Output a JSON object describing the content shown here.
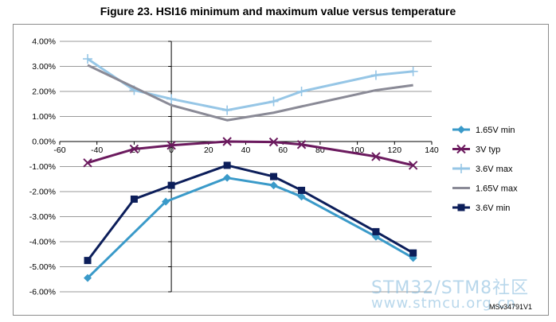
{
  "chart_data": {
    "type": "line",
    "title": "Figure 23. HSI16 minimum and maximum value versus temperature",
    "xlabel": "",
    "ylabel": "",
    "xlim": [
      -60,
      140
    ],
    "ylim": [
      -6.0,
      4.0
    ],
    "x_ticks": [
      -60,
      -40,
      -20,
      0,
      20,
      40,
      60,
      80,
      100,
      120,
      140
    ],
    "y_ticks": [
      4.0,
      3.0,
      2.0,
      1.0,
      0.0,
      -1.0,
      -2.0,
      -3.0,
      -4.0,
      -5.0,
      -6.0
    ],
    "y_tick_labels": [
      "4.00%",
      "3.00%",
      "2.00%",
      "1.00%",
      "0.00%",
      "-1.00%",
      "-2.00%",
      "-3.00%",
      "-4.00%",
      "-5.00%",
      "-6.00%"
    ],
    "x_tick_labels": [
      "-60",
      "-40",
      "-20",
      "0",
      "20",
      "40",
      "60",
      "80",
      "100",
      "120",
      "140"
    ],
    "grid": "horizontal",
    "legend_position": "right",
    "series": [
      {
        "name": "1.65V min",
        "color": "#3a9ac9",
        "marker": "diamond",
        "x": [
          -45,
          -3,
          30,
          55,
          70,
          110,
          130
        ],
        "y": [
          -5.45,
          -2.4,
          -1.45,
          -1.75,
          -2.2,
          -3.8,
          -4.65
        ]
      },
      {
        "name": "3V typ",
        "color": "#6b1a5e",
        "marker": "x",
        "x": [
          -45,
          -20,
          0,
          30,
          55,
          70,
          110,
          130
        ],
        "y": [
          -0.85,
          -0.3,
          -0.15,
          0.0,
          -0.02,
          -0.12,
          -0.6,
          -0.95
        ]
      },
      {
        "name": "3.6V max",
        "color": "#96c6e6",
        "marker": "plus",
        "x": [
          -45,
          -20,
          0,
          30,
          55,
          70,
          110,
          130
        ],
        "y": [
          3.3,
          2.05,
          1.7,
          1.25,
          1.6,
          2.0,
          2.65,
          2.8
        ]
      },
      {
        "name": "1.65V max",
        "color": "#8a8a96",
        "marker": "none",
        "x": [
          -45,
          0,
          30,
          55,
          70,
          110,
          130
        ],
        "y": [
          3.05,
          1.45,
          0.85,
          1.15,
          1.4,
          2.05,
          2.25
        ]
      },
      {
        "name": "3.6V min",
        "color": "#0c1e5a",
        "marker": "square",
        "x": [
          -45,
          -20,
          0,
          30,
          55,
          70,
          110,
          130
        ],
        "y": [
          -4.75,
          -2.3,
          -1.75,
          -0.95,
          -1.4,
          -1.95,
          -3.6,
          -4.45
        ]
      }
    ]
  },
  "watermark": {
    "line1": "STM32/STM8社区",
    "line2": "www.stmcu.org.cn"
  },
  "figure_ref": "MSv34791V1"
}
